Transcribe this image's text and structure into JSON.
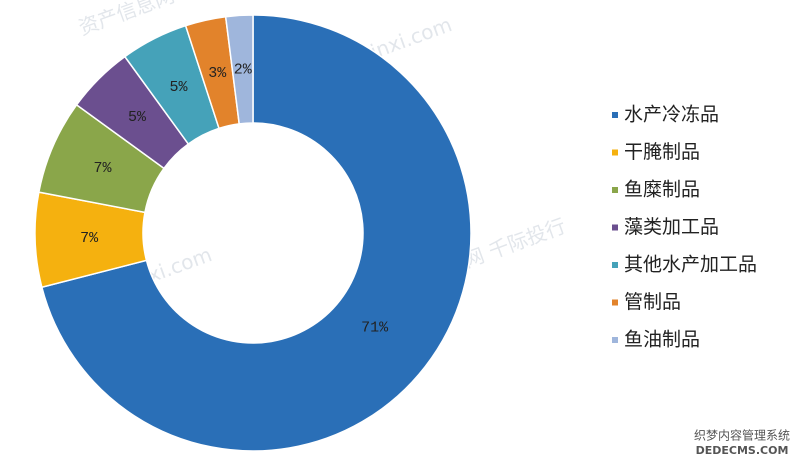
{
  "chart_data": {
    "type": "donut",
    "categories": [
      "水产冷冻品",
      "干腌制品",
      "鱼糜制品",
      "藻类加工品",
      "其他水产加工品",
      "管制品",
      "鱼油制品"
    ],
    "values": [
      71,
      7,
      7,
      5,
      5,
      3,
      2
    ],
    "value_labels": [
      "71%",
      "7%",
      "7%",
      "5%",
      "5%",
      "3%",
      "2%"
    ],
    "colors": [
      "#2a6fb7",
      "#f5b10f",
      "#8aa64a",
      "#6b4f8f",
      "#45a2b9",
      "#e2832b",
      "#9fb6dc"
    ],
    "legend": "right"
  },
  "watermarks": [
    "资产信息网 千际投行",
    "zichanxinxi.com",
    "织梦内容管理系统",
    "DEDECMS.COM"
  ]
}
